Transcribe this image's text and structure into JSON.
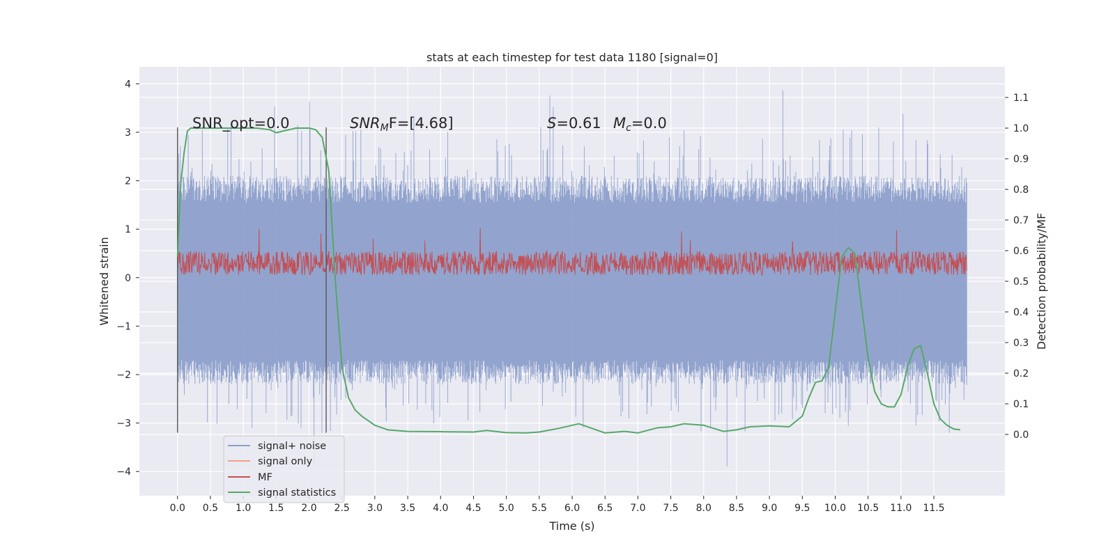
{
  "chart_data": {
    "type": "line",
    "title": "stats at each timestep for test data 1180 [signal=0]",
    "xlabel": "Time (s)",
    "ylabel_left": "Whitened strain",
    "ylabel_right": "Detection probability/MF",
    "xlim": [
      -0.58,
      12.58
    ],
    "ylim_left": [
      -4.5,
      4.35
    ],
    "ylim_right": [
      -0.2,
      1.2
    ],
    "grid": true,
    "x_ticks": [
      "0.0",
      "0.5",
      "1.0",
      "1.5",
      "2.0",
      "2.5",
      "3.0",
      "3.5",
      "4.0",
      "4.5",
      "5.0",
      "5.5",
      "6.0",
      "6.5",
      "7.0",
      "7.5",
      "8.0",
      "8.5",
      "9.0",
      "9.5",
      "10.0",
      "10.5",
      "11.0",
      "11.5"
    ],
    "y_left_ticks": [
      "4",
      "3",
      "2",
      "1",
      "0",
      "−1",
      "−2",
      "−3",
      "−4"
    ],
    "y_right_ticks": [
      "1.1",
      "1.0",
      "0.9",
      "0.8",
      "0.7",
      "0.6",
      "0.5",
      "0.4",
      "0.3",
      "0.2",
      "0.1",
      "0.0"
    ],
    "annotations": {
      "snr_opt": "SNR_opt=0.0",
      "snr_mf_sym": "SNR",
      "snr_mf_sub": "M",
      "snr_mf_rest": "F=[4.68]",
      "s_sym": "S",
      "s_val": "=0.61",
      "mc_sym": "M",
      "mc_sub": "c",
      "mc_val": "=0.0"
    },
    "vertical_markers": [
      0.0,
      2.26
    ],
    "legend": {
      "position": "lower-left",
      "entries": [
        "signal+ noise",
        "signal only",
        "MF",
        "signal statistics"
      ]
    },
    "series": [
      {
        "name": "signal+ noise",
        "axis": "left",
        "color": "#8da0cb",
        "description_values": "noise band approx. ±1.9, peaks to ±3.3",
        "x_range": [
          0.0,
          12.0
        ],
        "abs_max": 3.95
      },
      {
        "name": "signal only",
        "axis": "left",
        "color": "#f0a088",
        "values_note": "zero everywhere"
      },
      {
        "name": "MF",
        "axis": "left",
        "color": "#c44e52",
        "x_range": [
          0.0,
          12.0
        ],
        "band": [
          0.05,
          0.55
        ]
      },
      {
        "name": "signal statistics",
        "axis": "right",
        "color": "#55a868",
        "x": [
          0.0,
          0.05,
          0.1,
          0.15,
          0.2,
          0.3,
          0.5,
          0.8,
          1.0,
          1.2,
          1.4,
          1.5,
          1.6,
          1.8,
          2.0,
          2.1,
          2.2,
          2.3,
          2.4,
          2.5,
          2.6,
          2.7,
          2.8,
          3.0,
          3.2,
          3.5,
          4.0,
          4.5,
          4.7,
          5.0,
          5.3,
          5.5,
          5.8,
          6.0,
          6.1,
          6.3,
          6.5,
          6.8,
          7.0,
          7.3,
          7.5,
          7.7,
          8.0,
          8.3,
          8.5,
          8.7,
          9.0,
          9.3,
          9.5,
          9.6,
          9.7,
          9.8,
          9.9,
          10.0,
          10.1,
          10.2,
          10.3,
          10.4,
          10.5,
          10.6,
          10.7,
          10.8,
          10.9,
          11.0,
          11.1,
          11.2,
          11.3,
          11.4,
          11.5,
          11.6,
          11.7,
          11.8,
          11.9
        ],
        "values": [
          0.58,
          0.82,
          0.92,
          0.99,
          1.0,
          1.0,
          1.0,
          1.0,
          1.0,
          1.0,
          0.995,
          0.985,
          0.99,
          1.0,
          1.0,
          0.995,
          0.97,
          0.86,
          0.5,
          0.22,
          0.12,
          0.08,
          0.06,
          0.03,
          0.015,
          0.01,
          0.009,
          0.008,
          0.013,
          0.006,
          0.005,
          0.008,
          0.02,
          0.03,
          0.035,
          0.02,
          0.005,
          0.01,
          0.005,
          0.022,
          0.025,
          0.035,
          0.03,
          0.01,
          0.015,
          0.025,
          0.028,
          0.025,
          0.06,
          0.12,
          0.17,
          0.175,
          0.22,
          0.4,
          0.58,
          0.61,
          0.59,
          0.42,
          0.25,
          0.14,
          0.1,
          0.09,
          0.09,
          0.13,
          0.22,
          0.28,
          0.29,
          0.2,
          0.1,
          0.05,
          0.03,
          0.018,
          0.015
        ]
      }
    ]
  }
}
